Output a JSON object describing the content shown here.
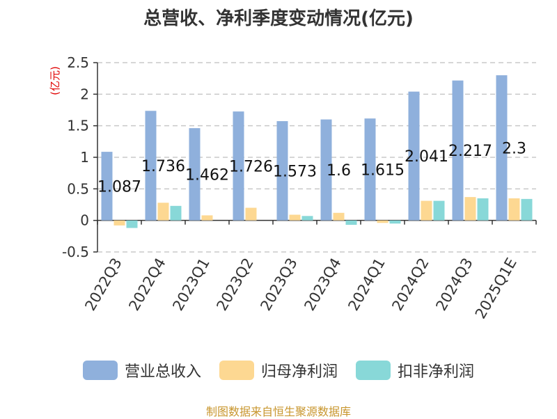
{
  "chart_data": {
    "type": "bar",
    "title": "总营收、净利季度变动情况(亿元)",
    "ylabel": "(亿元)",
    "xlabel": "",
    "categories": [
      "2022Q3",
      "2022Q4",
      "2023Q1",
      "2023Q2",
      "2023Q3",
      "2023Q4",
      "2024Q1",
      "2024Q2",
      "2024Q3",
      "2025Q1E"
    ],
    "series": [
      {
        "name": "营业总收入",
        "color": "#8fb0dc",
        "values": [
          1.087,
          1.736,
          1.462,
          1.726,
          1.573,
          1.6,
          1.615,
          2.041,
          2.217,
          2.3
        ]
      },
      {
        "name": "归母净利润",
        "color": "#fdd892",
        "values": [
          -0.08,
          0.28,
          0.08,
          0.2,
          0.09,
          0.12,
          -0.04,
          0.31,
          0.37,
          0.35
        ]
      },
      {
        "name": "扣非净利润",
        "color": "#88d8d8",
        "values": [
          -0.12,
          0.23,
          0.0,
          0.0,
          0.07,
          -0.07,
          -0.05,
          0.31,
          0.35,
          0.34
        ]
      }
    ],
    "data_labels": [
      "1.087",
      "1.736",
      "1.462",
      "1.726",
      "1.573",
      "1.6",
      "1.615",
      "2.041",
      "2.217",
      "2.3"
    ],
    "ylim": [
      -0.5,
      2.5
    ],
    "yticks": [
      "-0.5",
      "0",
      "0.5",
      "1",
      "1.5",
      "2",
      "2.5"
    ],
    "ytick_values": [
      -0.5,
      0,
      0.5,
      1,
      1.5,
      2,
      2.5
    ],
    "grid": true,
    "legend_position": "bottom"
  },
  "source_note": "制图数据来自恒生聚源数据库"
}
